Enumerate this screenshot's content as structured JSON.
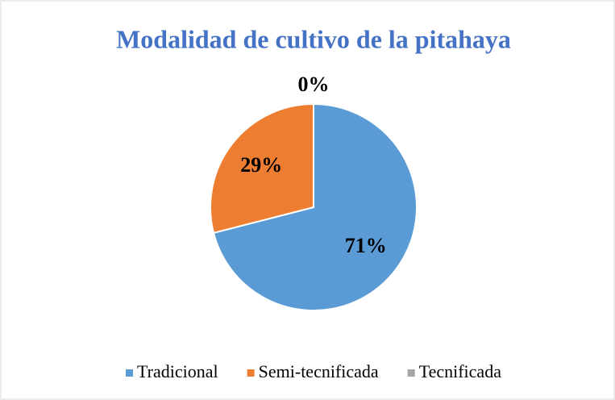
{
  "chart_data": {
    "type": "pie",
    "title": "Modalidad de cultivo de la pitahaya",
    "categories": [
      "Tradicional",
      "Semi-tecnificada",
      "Tecnificada"
    ],
    "values": [
      71,
      29,
      0
    ],
    "value_labels": [
      "71%",
      "29%",
      "0%"
    ],
    "colors": [
      "#5b9bd5",
      "#ed7d31",
      "#a5a5a5"
    ],
    "legend": "bottom"
  }
}
